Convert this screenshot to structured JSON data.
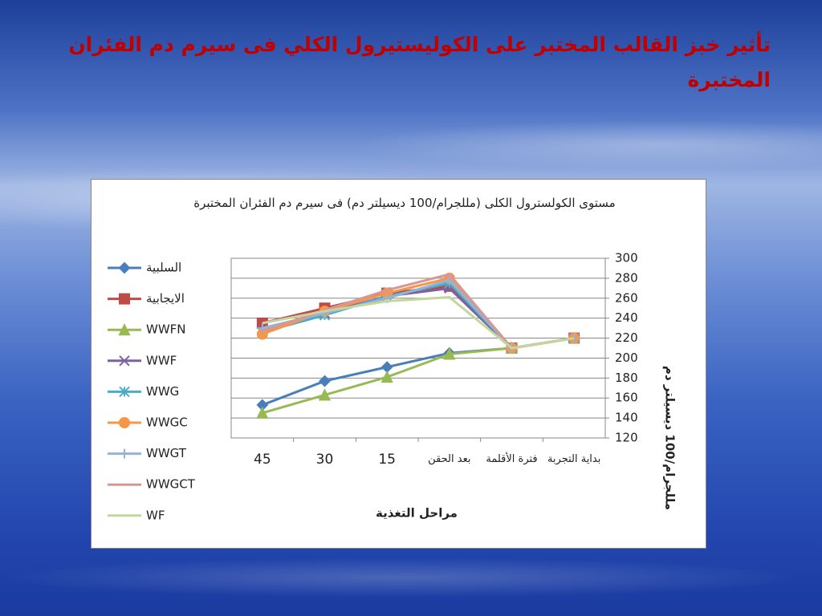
{
  "header": {
    "title": "تأثير خبز القالب المختبر على الكوليستيرول الكلي فى سيرم دم الفئران المختبرة"
  },
  "chart_data": {
    "type": "line",
    "title": "مستوى الكولسترول الكلى (مللجرام/100 ديسيلتر دم) فى سيرم دم الفئران المختبرة",
    "x_label": "مراحل التغذية",
    "y_label": "مللجرام/100 ديسيلتر دم",
    "categories": [
      "45",
      "30",
      "15",
      "بعد الحقن",
      "فترة الأقلمة",
      "بداية التجربة"
    ],
    "ylim": [
      120,
      300
    ],
    "yticks": [
      120,
      140,
      160,
      180,
      200,
      220,
      240,
      260,
      280,
      300
    ],
    "grid": true,
    "y_axis_side": "right",
    "legend": "left",
    "series": [
      {
        "name": "السلبية",
        "color": "#4a7ebb",
        "marker": "diamond",
        "values": [
          153,
          177,
          191,
          205,
          210,
          220
        ]
      },
      {
        "name": "الايجابية",
        "color": "#be4b48",
        "marker": "square",
        "values": [
          235,
          250,
          265,
          272,
          210,
          220
        ]
      },
      {
        "name": "WWFN",
        "color": "#98b954",
        "marker": "triangle",
        "values": [
          145,
          163,
          181,
          204,
          210,
          220
        ]
      },
      {
        "name": "WWF",
        "color": "#7d60a0",
        "marker": "x",
        "values": [
          228,
          245,
          262,
          270,
          210,
          220
        ]
      },
      {
        "name": "WWG",
        "color": "#4bacc6",
        "marker": "star",
        "values": [
          226,
          243,
          262,
          275,
          210,
          220
        ]
      },
      {
        "name": "WWGC",
        "color": "#f79646",
        "marker": "circle",
        "values": [
          224,
          247,
          265,
          280,
          210,
          220
        ]
      },
      {
        "name": "WWGT",
        "color": "#95b3d7",
        "marker": "plus",
        "values": [
          230,
          245,
          260,
          278,
          210,
          220
        ]
      },
      {
        "name": "WWGCT",
        "color": "#d99694",
        "marker": "none",
        "values": [
          227,
          248,
          268,
          284,
          210,
          220
        ]
      },
      {
        "name": "WF",
        "color": "#c3d69b",
        "marker": "none",
        "values": [
          235,
          247,
          257,
          261,
          210,
          220
        ]
      }
    ]
  }
}
